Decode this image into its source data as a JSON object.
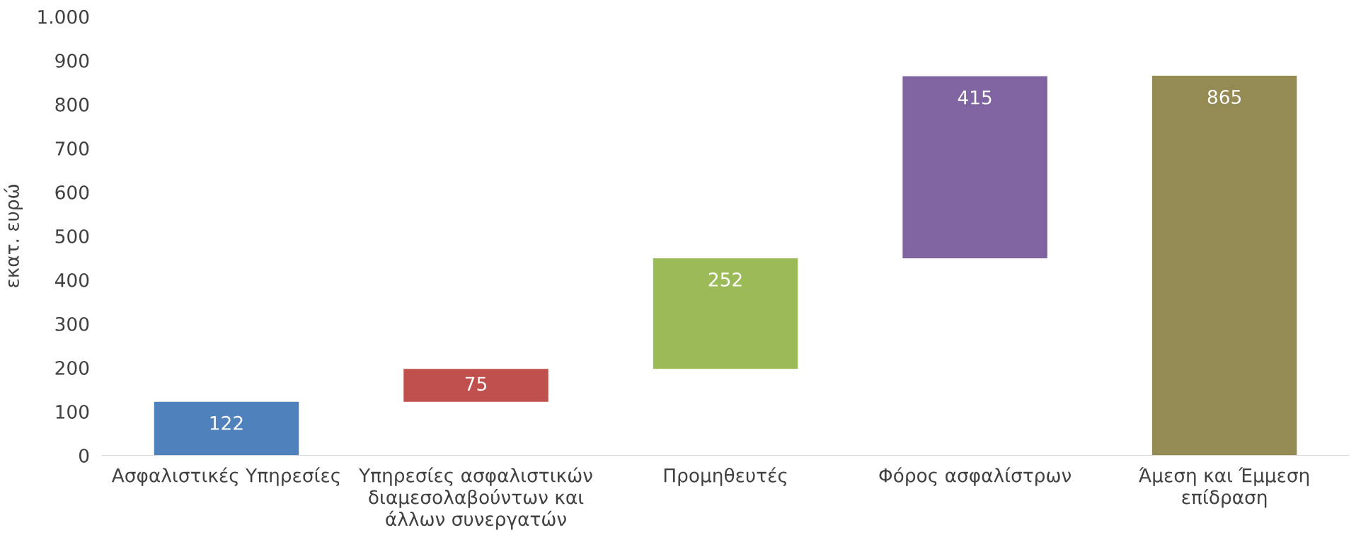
{
  "chart_data": {
    "type": "bar",
    "ylabel": "εκατ. ευρώ",
    "categories": [
      "Ασφαλιστικές Υπηρεσίες",
      "Υπηρεσίες ασφαλιστικών\nδιαμεσολαβούντων και\nάλλων συνεργατών",
      "Προμηθευτές",
      "Φόρος ασφαλίστρων",
      "Άμεση και Έμμεση\nεπίδραση"
    ],
    "values": [
      122,
      75,
      252,
      415,
      865
    ],
    "base": [
      0,
      122,
      197,
      449,
      0
    ],
    "colors": [
      "#4f81bd",
      "#c0504d",
      "#9bbb59",
      "#8064a2",
      "#948a54"
    ],
    "ylim": [
      0,
      1000
    ],
    "yticks": [
      0,
      100,
      200,
      300,
      400,
      500,
      600,
      700,
      800,
      900,
      {
        "value": 1000,
        "label": "1.000"
      }
    ],
    "data_labels": true,
    "grid": false
  }
}
